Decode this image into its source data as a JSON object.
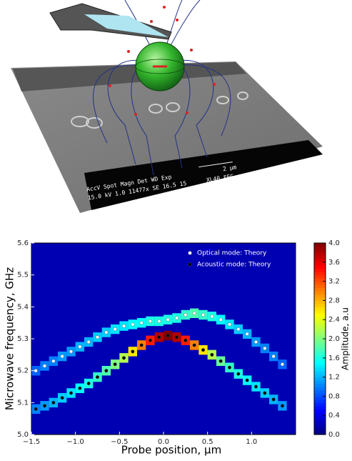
{
  "illustration": {
    "sem_header": "AccV    Spot Magn     Det   WD    Exp",
    "sem_values": "15.0 kV 1.0  11477x   SE   16.5  15",
    "scale_label": "2 µm",
    "instrument": "XL40 FEG"
  },
  "chart_data": {
    "type": "heatmap",
    "xlabel": "Probe position, µm",
    "ylabel": "Microwave frequency, GHz",
    "colorbar_label": "Amplitude, a.u",
    "xlim": [
      -1.5,
      1.5
    ],
    "ylim": [
      5.0,
      5.6
    ],
    "clim": [
      0,
      4
    ],
    "xticks": [
      {
        "value": -1.5,
        "label": "−1.5"
      },
      {
        "value": -1.0,
        "label": "−1.0"
      },
      {
        "value": -0.5,
        "label": "−0.5"
      },
      {
        "value": 0,
        "label": "0.0"
      },
      0.5,
      {
        "value": 1.0,
        "label": "1.0"
      }
    ],
    "yticks": [
      {
        "value": 5.0,
        "label": "5.0"
      },
      5.1,
      5.2,
      5.3,
      5.4,
      5.5,
      {
        "value": 5.6,
        "label": "5.6"
      }
    ],
    "cticks": [
      {
        "value": 0,
        "label": "0.0"
      },
      0.4,
      0.8,
      1.2,
      1.6,
      {
        "value": 2,
        "label": "2.0"
      },
      2.4,
      2.8,
      3.2,
      3.6,
      {
        "value": 4,
        "label": "4.0"
      }
    ],
    "colormap": "jet",
    "legend": "upper right",
    "x": [
      -1.45,
      -1.35,
      -1.25,
      -1.15,
      -1.05,
      -0.95,
      -0.85,
      -0.75,
      -0.65,
      -0.55,
      -0.45,
      -0.35,
      -0.25,
      -0.15,
      -0.05,
      0.05,
      0.15,
      0.25,
      0.35,
      0.45,
      0.55,
      0.65,
      0.75,
      0.85,
      0.95,
      1.05,
      1.15,
      1.25,
      1.35
    ],
    "heatmap": {
      "background": 0.2,
      "bin": 0.03,
      "optical_amplitude": [
        0.9,
        1.0,
        1.0,
        1.1,
        1.1,
        1.2,
        1.2,
        1.3,
        1.3,
        1.4,
        1.4,
        1.5,
        1.5,
        1.6,
        1.6,
        1.6,
        1.6,
        1.7,
        1.8,
        1.7,
        1.6,
        1.5,
        1.4,
        1.3,
        1.2,
        1.1,
        1.0,
        1.0,
        0.9
      ],
      "acoustic_amplitude": [
        1.0,
        1.1,
        1.2,
        1.3,
        1.4,
        1.5,
        1.6,
        1.7,
        1.8,
        2.0,
        2.2,
        2.6,
        3.0,
        3.4,
        3.8,
        4.0,
        3.8,
        3.4,
        3.0,
        2.6,
        2.2,
        1.9,
        1.7,
        1.6,
        1.5,
        1.4,
        1.3,
        1.2,
        1.1
      ]
    },
    "series": [
      {
        "name": "Optical mode: Theory",
        "color": "#ffffff",
        "values": [
          5.2,
          5.215,
          5.23,
          5.245,
          5.26,
          5.275,
          5.29,
          5.305,
          5.32,
          5.33,
          5.34,
          5.345,
          5.35,
          5.355,
          5.355,
          5.36,
          5.365,
          5.375,
          5.38,
          5.375,
          5.37,
          5.36,
          5.345,
          5.33,
          5.315,
          5.29,
          5.27,
          5.245,
          5.22
        ]
      },
      {
        "name": "Acoustic mode: Theory",
        "color": "#000000",
        "values": [
          5.08,
          5.09,
          5.1,
          5.115,
          5.13,
          5.145,
          5.16,
          5.18,
          5.2,
          5.22,
          5.24,
          5.26,
          5.28,
          5.295,
          5.305,
          5.31,
          5.305,
          5.295,
          5.28,
          5.265,
          5.25,
          5.23,
          5.21,
          5.19,
          5.17,
          5.15,
          5.13,
          5.11,
          5.09
        ]
      }
    ]
  }
}
